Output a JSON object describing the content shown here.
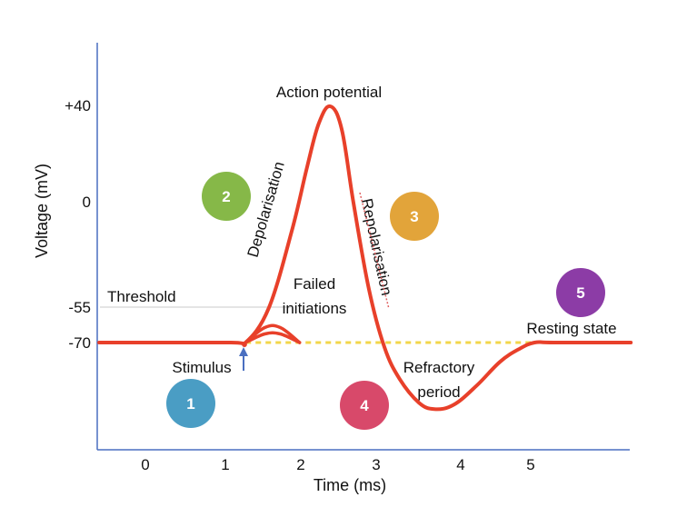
{
  "chart_data": {
    "type": "line",
    "xlabel": "Time (ms)",
    "ylabel": "Voltage (mV)",
    "x_ticks": [
      "0",
      "1",
      "2",
      "3",
      "4",
      "5"
    ],
    "y_ticks": [
      "+40",
      "0",
      "-55",
      "-70"
    ],
    "threshold_label": "Threshold",
    "threshold_value": -55,
    "series": [
      {
        "color": "#e8402a",
        "x": [
          -0.6,
          1.1,
          1.3,
          1.6,
          1.9,
          2.1,
          2.25,
          2.4,
          2.55,
          2.7,
          2.9,
          3.1,
          3.3,
          3.55,
          3.75,
          4.0,
          4.3,
          4.6,
          4.85,
          5.05,
          5.3,
          6.3
        ],
        "y": [
          -70,
          -70,
          -70,
          -54,
          -18,
          12,
          32,
          40,
          29,
          -5,
          -45,
          -72,
          -87,
          -98,
          -101,
          -99,
          -90,
          -79,
          -73,
          -70,
          -70,
          -70
        ]
      }
    ],
    "failed_initiations": [
      {
        "x": [
          1.3,
          1.55,
          1.75,
          2.0
        ],
        "y": [
          -70,
          -63,
          -63,
          -70
        ]
      },
      {
        "x": [
          1.3,
          1.55,
          1.75,
          2.0
        ],
        "y": [
          -70,
          -66,
          -66,
          -70
        ]
      }
    ],
    "dashed_resting_line": {
      "color": "#f2d64b",
      "x": [
        1.3,
        5.0
      ],
      "y": -70
    }
  },
  "annotations": {
    "action_potential": "Action potential",
    "depolarisation": "Depolarisation",
    "repolarisation": "Repolarisation",
    "failed_initiations_line1": "Failed",
    "failed_initiations_line2": "initiations",
    "resting_state": "Resting state",
    "refractory_line1": "Refractory",
    "refractory_line2": "period",
    "stimulus": "Stimulus"
  },
  "badges": [
    {
      "label": "1",
      "color": "#4a9dc4"
    },
    {
      "label": "2",
      "color": "#86b848"
    },
    {
      "label": "3",
      "color": "#e2a43a"
    },
    {
      "label": "4",
      "color": "#d8496a"
    },
    {
      "label": "5",
      "color": "#8c3ca6"
    }
  ],
  "colors": {
    "axis": "#4a6fc0",
    "curve": "#e8402a",
    "threshold_line": "#c8c8c8",
    "stimulus_arrow": "#4a6fc0"
  }
}
